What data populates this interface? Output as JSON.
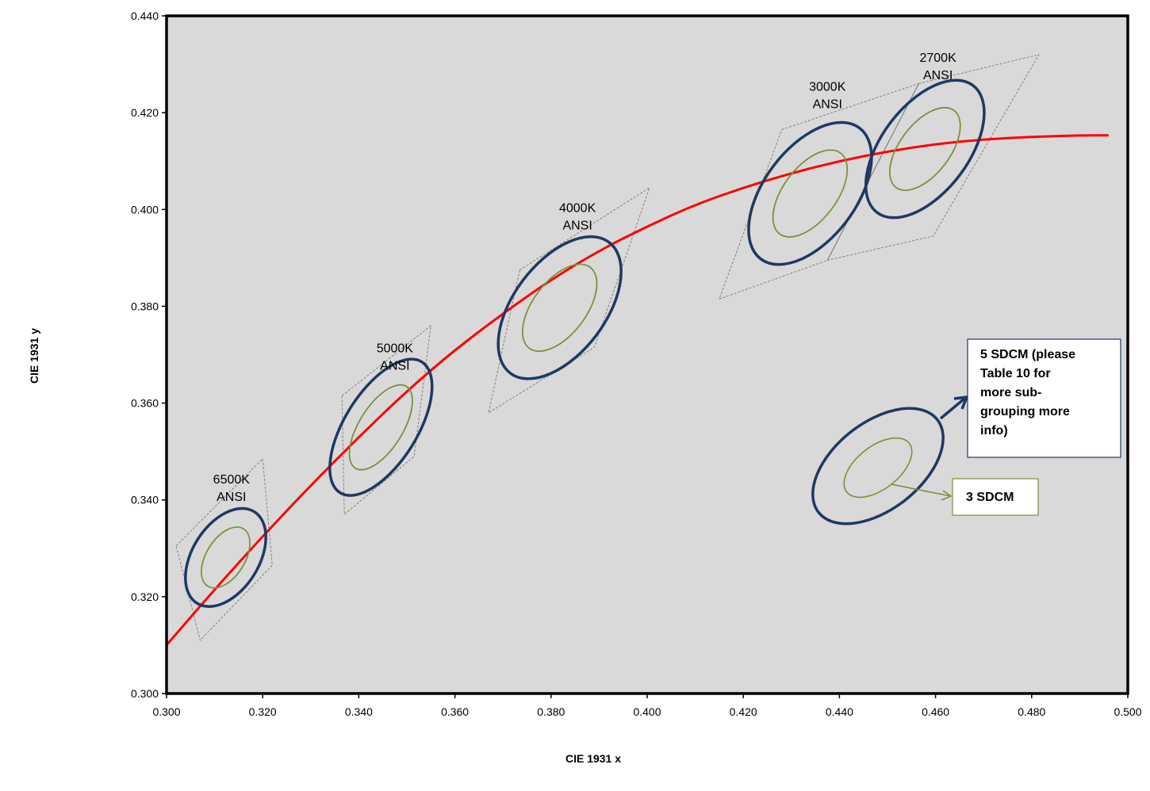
{
  "chart_data": {
    "type": "scatter",
    "xlabel": "CIE 1931 x",
    "ylabel": "CIE 1931 y",
    "xlim": [
      0.3,
      0.5
    ],
    "ylim": [
      0.3,
      0.44
    ],
    "x_ticks": [
      "0.300",
      "0.320",
      "0.340",
      "0.360",
      "0.380",
      "0.400",
      "0.420",
      "0.440",
      "0.460",
      "0.480",
      "0.500"
    ],
    "y_ticks": [
      "0.300",
      "0.320",
      "0.340",
      "0.360",
      "0.380",
      "0.400",
      "0.420",
      "0.440"
    ],
    "grid": false,
    "plot_background": "#d9d9d9",
    "colors": {
      "planckian_locus": "#ff0000",
      "five_sdcm": "#1f3864",
      "three_sdcm": "#77933c",
      "ansi_quad": "#808080"
    },
    "planckian_locus": {
      "name": "",
      "points": [
        [
          0.3,
          0.31
        ],
        [
          0.31,
          0.3215
        ],
        [
          0.32,
          0.3325
        ],
        [
          0.33,
          0.343
        ],
        [
          0.34,
          0.353
        ],
        [
          0.35,
          0.3625
        ],
        [
          0.36,
          0.371
        ],
        [
          0.37,
          0.3785
        ],
        [
          0.38,
          0.3855
        ],
        [
          0.39,
          0.3915
        ],
        [
          0.4,
          0.3965
        ],
        [
          0.41,
          0.401
        ],
        [
          0.42,
          0.4045
        ],
        [
          0.43,
          0.4075
        ],
        [
          0.44,
          0.41
        ],
        [
          0.45,
          0.412
        ],
        [
          0.46,
          0.4135
        ],
        [
          0.47,
          0.4145
        ],
        [
          0.48,
          0.415
        ],
        [
          0.49,
          0.4153
        ],
        [
          0.496,
          0.4153
        ]
      ]
    },
    "ansi_quadrangles": [
      {
        "label": [
          "6500K",
          "ANSI"
        ],
        "label_pos": [
          0.3135,
          0.3434
        ],
        "corners": [
          [
            0.302,
            0.3305
          ],
          [
            0.32,
            0.3485
          ],
          [
            0.322,
            0.3265
          ],
          [
            0.307,
            0.311
          ]
        ]
      },
      {
        "label": [
          "5000K",
          "ANSI"
        ],
        "label_pos": [
          0.3475,
          0.3705
        ],
        "corners": [
          [
            0.3365,
            0.3615
          ],
          [
            0.355,
            0.376
          ],
          [
            0.3515,
            0.349
          ],
          [
            0.337,
            0.337
          ]
        ]
      },
      {
        "label": [
          "4000K",
          "ANSI"
        ],
        "label_pos": [
          0.3855,
          0.3995
        ],
        "corners": [
          [
            0.3735,
            0.3875
          ],
          [
            0.4005,
            0.4045
          ],
          [
            0.389,
            0.3715
          ],
          [
            0.367,
            0.358
          ]
        ]
      },
      {
        "label": [
          "3000K",
          "ANSI"
        ],
        "label_pos": [
          0.4375,
          0.4245
        ],
        "corners": [
          [
            0.428,
            0.4165
          ],
          [
            0.4565,
            0.426
          ],
          [
            0.4375,
            0.3895
          ],
          [
            0.415,
            0.3815
          ]
        ]
      },
      {
        "label": [
          "2700K",
          "ANSI"
        ],
        "label_pos": [
          0.4605,
          0.4305
        ],
        "corners": [
          [
            0.4565,
            0.426
          ],
          [
            0.4815,
            0.432
          ],
          [
            0.4595,
            0.3945
          ],
          [
            0.4375,
            0.3895
          ]
        ]
      }
    ],
    "ellipses": [
      {
        "cct": "6500K",
        "center": [
          0.3123,
          0.3281
        ],
        "five": {
          "a": 0.0112,
          "b": 0.0069,
          "angle": 58
        },
        "three": {
          "a": 0.007,
          "b": 0.004,
          "angle": 58
        }
      },
      {
        "cct": "5000K",
        "center": [
          0.3446,
          0.355
        ],
        "five": {
          "a": 0.016,
          "b": 0.0075,
          "angle": 58
        },
        "three": {
          "a": 0.01,
          "b": 0.0045,
          "angle": 58
        }
      },
      {
        "cct": "4000K",
        "center": [
          0.3818,
          0.3797
        ],
        "five": {
          "a": 0.017,
          "b": 0.0095,
          "angle": 53
        },
        "three": {
          "a": 0.0105,
          "b": 0.0055,
          "angle": 53
        }
      },
      {
        "cct": "3000K",
        "center": [
          0.4339,
          0.4033
        ],
        "five": {
          "a": 0.017,
          "b": 0.0095,
          "angle": 53
        },
        "three": {
          "a": 0.0105,
          "b": 0.0055,
          "angle": 53
        }
      },
      {
        "cct": "2700K",
        "center": [
          0.4578,
          0.4125
        ],
        "five": {
          "a": 0.0165,
          "b": 0.009,
          "angle": 53
        },
        "three": {
          "a": 0.01,
          "b": 0.0052,
          "angle": 53
        }
      }
    ],
    "legend": {
      "five_sdcm_text": [
        "5 SDCM (please",
        "Table 10 for",
        "more sub-",
        "grouping more",
        "info)"
      ],
      "three_sdcm_text": "3 SDCM"
    }
  }
}
